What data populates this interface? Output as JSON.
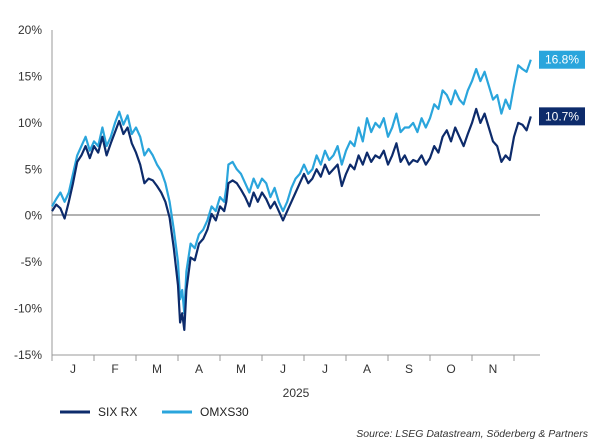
{
  "chart_data": {
    "type": "line",
    "title": "",
    "xlabel": "2025",
    "ylabel": "",
    "x_ticks": [
      "J",
      "F",
      "M",
      "A",
      "M",
      "J",
      "J",
      "A",
      "S",
      "O",
      "N"
    ],
    "y_ticks": [
      "20%",
      "15%",
      "10%",
      "5%",
      "0%",
      "-5%",
      "-10%",
      "-15%"
    ],
    "ylim": [
      -15,
      20
    ],
    "x_range_months": [
      0,
      11.4
    ],
    "grid": false,
    "legend_position": "bottom-left",
    "colors": {
      "six_rx": "#0d2b6b",
      "omxs30": "#2aa5dc",
      "zero_line": "#666666"
    },
    "series": [
      {
        "name": "SIX RX",
        "color": "#0d2b6b",
        "end_label": "10.7%",
        "points": [
          [
            0.0,
            0.5
          ],
          [
            0.1,
            1.2
          ],
          [
            0.2,
            0.8
          ],
          [
            0.3,
            -0.3
          ],
          [
            0.4,
            1.5
          ],
          [
            0.5,
            3.5
          ],
          [
            0.6,
            5.8
          ],
          [
            0.7,
            6.5
          ],
          [
            0.8,
            7.5
          ],
          [
            0.9,
            6.2
          ],
          [
            1.0,
            7.5
          ],
          [
            1.1,
            6.8
          ],
          [
            1.2,
            8.5
          ],
          [
            1.3,
            6.5
          ],
          [
            1.4,
            7.8
          ],
          [
            1.5,
            9.0
          ],
          [
            1.6,
            10.2
          ],
          [
            1.7,
            8.8
          ],
          [
            1.8,
            9.5
          ],
          [
            1.9,
            7.8
          ],
          [
            2.0,
            6.8
          ],
          [
            2.1,
            5.5
          ],
          [
            2.2,
            3.5
          ],
          [
            2.3,
            4.0
          ],
          [
            2.4,
            3.8
          ],
          [
            2.5,
            3.2
          ],
          [
            2.6,
            2.5
          ],
          [
            2.7,
            1.5
          ],
          [
            2.8,
            -0.2
          ],
          [
            2.9,
            -3.5
          ],
          [
            3.0,
            -7.5
          ],
          [
            3.05,
            -11.5
          ],
          [
            3.1,
            -10.5
          ],
          [
            3.15,
            -12.3
          ],
          [
            3.2,
            -8.0
          ],
          [
            3.3,
            -4.5
          ],
          [
            3.4,
            -4.8
          ],
          [
            3.5,
            -3.0
          ],
          [
            3.6,
            -2.5
          ],
          [
            3.7,
            -1.5
          ],
          [
            3.8,
            0.2
          ],
          [
            3.9,
            -0.5
          ],
          [
            4.0,
            1.0
          ],
          [
            4.1,
            0.5
          ],
          [
            4.15,
            1.5
          ],
          [
            4.2,
            3.5
          ],
          [
            4.3,
            3.8
          ],
          [
            4.4,
            3.5
          ],
          [
            4.5,
            2.8
          ],
          [
            4.6,
            2.0
          ],
          [
            4.7,
            1.0
          ],
          [
            4.8,
            2.5
          ],
          [
            4.9,
            1.5
          ],
          [
            5.0,
            2.5
          ],
          [
            5.1,
            1.8
          ],
          [
            5.2,
            0.8
          ],
          [
            5.3,
            1.5
          ],
          [
            5.4,
            0.5
          ],
          [
            5.5,
            -0.5
          ],
          [
            5.6,
            0.5
          ],
          [
            5.7,
            1.5
          ],
          [
            5.8,
            2.5
          ],
          [
            5.9,
            3.5
          ],
          [
            6.0,
            4.5
          ],
          [
            6.1,
            3.5
          ],
          [
            6.2,
            4.0
          ],
          [
            6.3,
            5.0
          ],
          [
            6.4,
            4.2
          ],
          [
            6.5,
            5.5
          ],
          [
            6.6,
            4.5
          ],
          [
            6.7,
            5.0
          ],
          [
            6.8,
            5.5
          ],
          [
            6.9,
            3.2
          ],
          [
            7.0,
            4.5
          ],
          [
            7.1,
            5.5
          ],
          [
            7.2,
            5.0
          ],
          [
            7.3,
            6.5
          ],
          [
            7.4,
            5.5
          ],
          [
            7.5,
            6.8
          ],
          [
            7.6,
            5.8
          ],
          [
            7.7,
            6.5
          ],
          [
            7.8,
            6.2
          ],
          [
            7.9,
            7.0
          ],
          [
            8.0,
            5.5
          ],
          [
            8.1,
            6.5
          ],
          [
            8.2,
            7.8
          ],
          [
            8.3,
            5.8
          ],
          [
            8.4,
            6.5
          ],
          [
            8.5,
            5.5
          ],
          [
            8.6,
            6.0
          ],
          [
            8.7,
            5.8
          ],
          [
            8.8,
            6.5
          ],
          [
            8.9,
            5.5
          ],
          [
            9.0,
            6.2
          ],
          [
            9.1,
            7.5
          ],
          [
            9.2,
            6.8
          ],
          [
            9.3,
            8.5
          ],
          [
            9.4,
            9.2
          ],
          [
            9.5,
            8.0
          ],
          [
            9.6,
            9.5
          ],
          [
            9.7,
            8.5
          ],
          [
            9.8,
            7.5
          ],
          [
            9.9,
            8.8
          ],
          [
            10.0,
            10.0
          ],
          [
            10.1,
            11.5
          ],
          [
            10.2,
            10.0
          ],
          [
            10.3,
            11.0
          ],
          [
            10.4,
            9.5
          ],
          [
            10.5,
            8.0
          ],
          [
            10.6,
            7.5
          ],
          [
            10.7,
            5.8
          ],
          [
            10.8,
            6.5
          ],
          [
            10.9,
            6.0
          ],
          [
            11.0,
            8.5
          ],
          [
            11.1,
            10.0
          ],
          [
            11.2,
            9.8
          ],
          [
            11.3,
            9.2
          ],
          [
            11.4,
            10.7
          ]
        ]
      },
      {
        "name": "OMXS30",
        "color": "#2aa5dc",
        "end_label": "16.8%",
        "points": [
          [
            0.0,
            1.0
          ],
          [
            0.1,
            1.8
          ],
          [
            0.2,
            2.5
          ],
          [
            0.3,
            1.5
          ],
          [
            0.4,
            2.5
          ],
          [
            0.5,
            4.5
          ],
          [
            0.6,
            6.5
          ],
          [
            0.7,
            7.5
          ],
          [
            0.8,
            8.5
          ],
          [
            0.9,
            7.0
          ],
          [
            1.0,
            8.0
          ],
          [
            1.1,
            7.5
          ],
          [
            1.2,
            9.5
          ],
          [
            1.3,
            7.5
          ],
          [
            1.4,
            8.5
          ],
          [
            1.5,
            10.0
          ],
          [
            1.6,
            11.2
          ],
          [
            1.7,
            9.8
          ],
          [
            1.8,
            10.8
          ],
          [
            1.9,
            8.8
          ],
          [
            2.0,
            9.5
          ],
          [
            2.1,
            8.5
          ],
          [
            2.2,
            6.5
          ],
          [
            2.3,
            7.2
          ],
          [
            2.4,
            6.5
          ],
          [
            2.5,
            5.5
          ],
          [
            2.6,
            4.8
          ],
          [
            2.7,
            3.5
          ],
          [
            2.8,
            1.5
          ],
          [
            2.9,
            -1.5
          ],
          [
            3.0,
            -5.0
          ],
          [
            3.05,
            -9.0
          ],
          [
            3.1,
            -8.0
          ],
          [
            3.15,
            -10.5
          ],
          [
            3.2,
            -6.0
          ],
          [
            3.3,
            -3.0
          ],
          [
            3.4,
            -3.5
          ],
          [
            3.5,
            -2.0
          ],
          [
            3.6,
            -1.5
          ],
          [
            3.7,
            -0.5
          ],
          [
            3.8,
            1.0
          ],
          [
            3.9,
            0.5
          ],
          [
            4.0,
            2.0
          ],
          [
            4.1,
            1.5
          ],
          [
            4.15,
            3.0
          ],
          [
            4.2,
            5.5
          ],
          [
            4.3,
            5.8
          ],
          [
            4.4,
            5.0
          ],
          [
            4.5,
            4.5
          ],
          [
            4.6,
            3.5
          ],
          [
            4.7,
            2.5
          ],
          [
            4.8,
            4.0
          ],
          [
            4.9,
            3.0
          ],
          [
            5.0,
            4.0
          ],
          [
            5.1,
            3.5
          ],
          [
            5.2,
            2.0
          ],
          [
            5.3,
            3.0
          ],
          [
            5.4,
            1.5
          ],
          [
            5.5,
            0.5
          ],
          [
            5.6,
            1.5
          ],
          [
            5.7,
            3.0
          ],
          [
            5.8,
            4.0
          ],
          [
            5.9,
            4.5
          ],
          [
            6.0,
            5.5
          ],
          [
            6.1,
            4.5
          ],
          [
            6.2,
            5.0
          ],
          [
            6.3,
            6.5
          ],
          [
            6.4,
            5.5
          ],
          [
            6.5,
            7.0
          ],
          [
            6.6,
            6.0
          ],
          [
            6.7,
            6.5
          ],
          [
            6.8,
            7.5
          ],
          [
            6.9,
            5.5
          ],
          [
            7.0,
            7.0
          ],
          [
            7.1,
            8.0
          ],
          [
            7.2,
            7.5
          ],
          [
            7.3,
            9.5
          ],
          [
            7.4,
            8.0
          ],
          [
            7.5,
            10.5
          ],
          [
            7.6,
            9.0
          ],
          [
            7.7,
            10.0
          ],
          [
            7.8,
            9.5
          ],
          [
            7.9,
            10.5
          ],
          [
            8.0,
            8.5
          ],
          [
            8.1,
            9.5
          ],
          [
            8.2,
            11.0
          ],
          [
            8.3,
            9.0
          ],
          [
            8.4,
            9.5
          ],
          [
            8.5,
            9.5
          ],
          [
            8.6,
            10.0
          ],
          [
            8.7,
            9.0
          ],
          [
            8.8,
            10.5
          ],
          [
            8.9,
            9.5
          ],
          [
            9.0,
            10.5
          ],
          [
            9.1,
            12.0
          ],
          [
            9.2,
            11.5
          ],
          [
            9.3,
            13.5
          ],
          [
            9.4,
            13.0
          ],
          [
            9.5,
            12.0
          ],
          [
            9.6,
            13.5
          ],
          [
            9.7,
            12.5
          ],
          [
            9.8,
            12.0
          ],
          [
            9.9,
            13.5
          ],
          [
            10.0,
            14.5
          ],
          [
            10.1,
            15.8
          ],
          [
            10.2,
            14.5
          ],
          [
            10.3,
            15.5
          ],
          [
            10.4,
            14.0
          ],
          [
            10.5,
            12.5
          ],
          [
            10.6,
            13.0
          ],
          [
            10.7,
            11.0
          ],
          [
            10.8,
            12.5
          ],
          [
            10.9,
            11.5
          ],
          [
            11.0,
            14.0
          ],
          [
            11.1,
            16.2
          ],
          [
            11.2,
            15.8
          ],
          [
            11.3,
            15.5
          ],
          [
            11.4,
            16.8
          ]
        ]
      }
    ],
    "source": "Source: LSEG Datastream, Söderberg & Partners"
  }
}
